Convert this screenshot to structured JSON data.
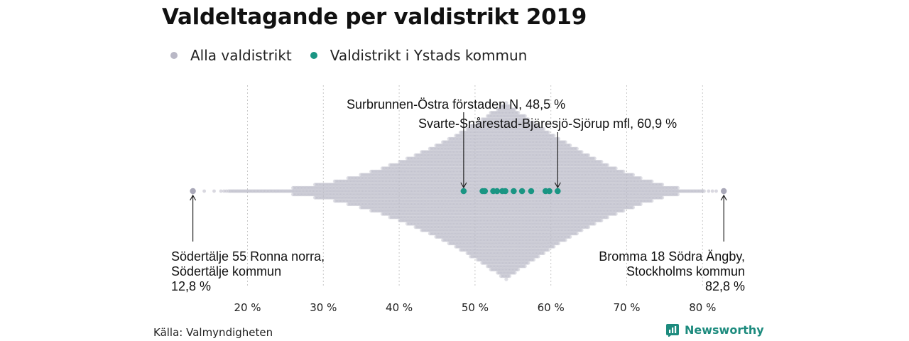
{
  "header": {
    "title": "Valdeltagande per valdistrikt 2019"
  },
  "legend": [
    {
      "label": "Alla valdistrikt",
      "color": "#b9b8c6"
    },
    {
      "label": "Valdistrikt i Ystads kommun",
      "color": "#1a9583"
    }
  ],
  "footer": {
    "source": "Källa: Valmyndigheten",
    "brand": "Newsworthy",
    "brand_icon": "bar-chart-icon"
  },
  "colors": {
    "all_districts": "#b9b8c6",
    "ystad": "#1a9583",
    "grid": "#c8c8c8",
    "brand": "#1d8b7e"
  },
  "chart_data": {
    "type": "scatter",
    "subtype": "beeswarm",
    "x_axis": {
      "ticks": [
        20,
        30,
        40,
        50,
        60,
        70,
        80
      ],
      "tick_labels": [
        "20 %",
        "30 %",
        "40 %",
        "50 %",
        "60 %",
        "70 %",
        "80 %"
      ],
      "range": [
        12,
        83.5
      ]
    },
    "grid": "vertical dotted",
    "series": [
      {
        "name": "Alla valdistrikt",
        "distribution_peak": 54,
        "min": 12.8,
        "max": 82.8
      },
      {
        "name": "Valdistrikt i Ystads kommun",
        "values": [
          48.5,
          51.0,
          51.3,
          52.4,
          52.9,
          53.6,
          54.0,
          55.1,
          56.2,
          57.4,
          59.3,
          59.8,
          60.9
        ]
      }
    ],
    "annotations": {
      "low": {
        "lines": [
          "Södertälje 55 Ronna norra,",
          "Södertälje kommun",
          "12,8 %"
        ],
        "value": 12.8
      },
      "high": {
        "lines": [
          "Bromma 18 Södra Ängby,",
          "Stockholms kommun",
          "82,8 %"
        ],
        "value": 82.8
      },
      "ystad_min": {
        "text": "Surbrunnen-Östra förstaden N, 48,5 %",
        "value": 48.5
      },
      "ystad_max": {
        "text": "Svarte-Snårestad-Bjäresjö-Sjörup mfl, 60,9 %",
        "value": 60.9
      }
    }
  }
}
